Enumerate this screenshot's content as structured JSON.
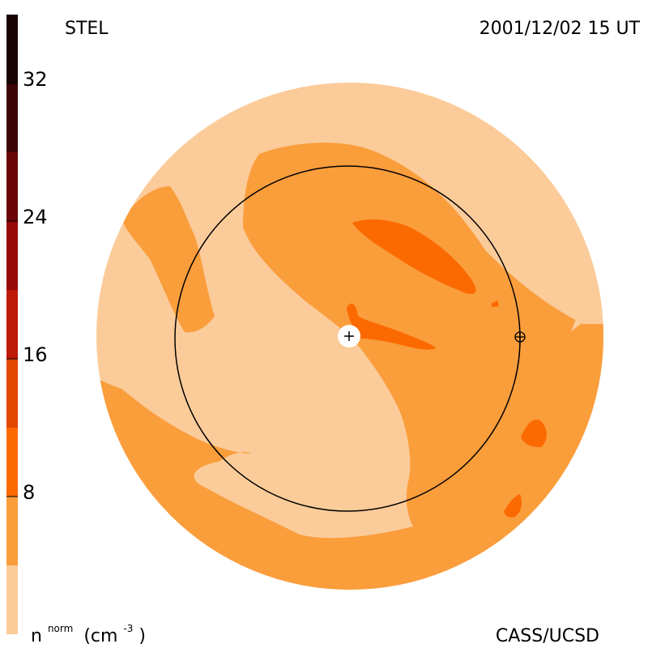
{
  "header": {
    "source": "STEL",
    "datetime": "2001/12/02 15 UT"
  },
  "footer": {
    "credit": "CASS/UCSD",
    "unit_label_n": "n",
    "unit_label_sup": "norm",
    "unit_label_units": "(cm",
    "unit_label_exp": "-3",
    "unit_label_close": ")"
  },
  "colorbar": {
    "ticks": [
      "8",
      "16",
      "24",
      "32"
    ],
    "bands": [
      {
        "level": "0-4",
        "color": "#FBCB9A"
      },
      {
        "level": "4-8",
        "color": "#FA9D3B"
      },
      {
        "level": "8-12",
        "color": "#FB6A00"
      },
      {
        "level": "12-16",
        "color": "#E34800"
      },
      {
        "level": "16-20",
        "color": "#BD1A08"
      },
      {
        "level": "20-24",
        "color": "#980808"
      },
      {
        "level": "24-28",
        "color": "#6B0606"
      },
      {
        "level": "28-32",
        "color": "#3D0505"
      },
      {
        "level": "32+",
        "color": "#1A0303"
      }
    ]
  },
  "colors": {
    "low": "#FBCB9A",
    "mid": "#FA9D3B",
    "high": "#FB6A00",
    "ink": "#000000"
  },
  "markers": {
    "sun": "plus-marker",
    "earth": "earth-symbol-icon"
  }
}
